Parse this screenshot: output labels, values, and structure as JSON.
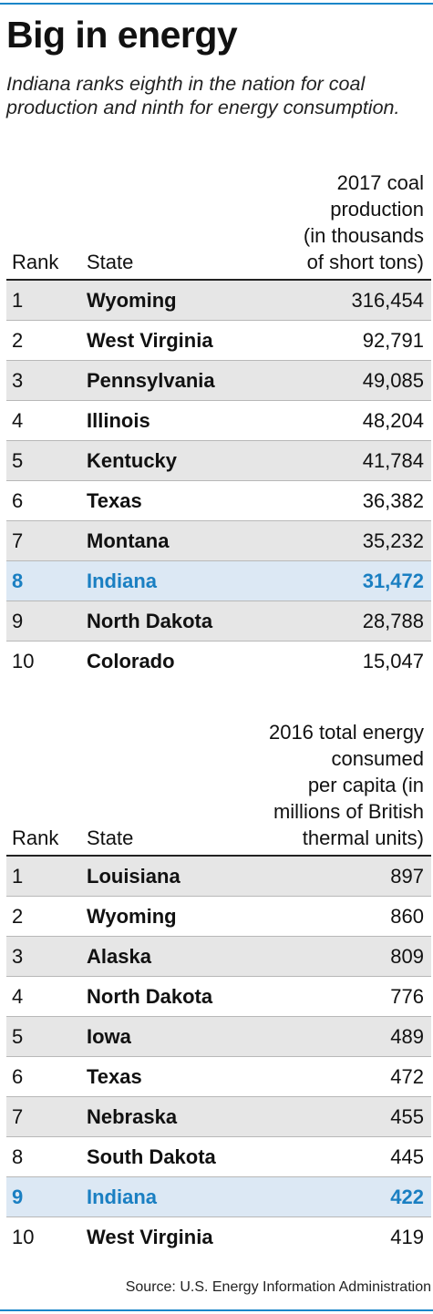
{
  "header": {
    "title": "Big in energy",
    "subtitle": "Indiana ranks eighth in the nation for coal production and ninth for energy consumption."
  },
  "colors": {
    "accent": "#1a7fc2",
    "highlight_row": "#dce8f4",
    "shaded_row": "#e6e6e6",
    "rule": "#1a86c8"
  },
  "chart_data": [
    {
      "type": "table",
      "columns": [
        "Rank",
        "State",
        "2017 coal production (in thousands of short tons)"
      ],
      "value_header_lines": [
        "2017 coal",
        "production",
        "(in thousands",
        "of short tons)"
      ],
      "highlight_rank": 8,
      "rows": [
        {
          "rank": "1",
          "state": "Wyoming",
          "value": "316,454"
        },
        {
          "rank": "2",
          "state": "West Virginia",
          "value": "92,791"
        },
        {
          "rank": "3",
          "state": "Pennsylvania",
          "value": "49,085"
        },
        {
          "rank": "4",
          "state": "Illinois",
          "value": "48,204"
        },
        {
          "rank": "5",
          "state": "Kentucky",
          "value": "41,784"
        },
        {
          "rank": "6",
          "state": "Texas",
          "value": "36,382"
        },
        {
          "rank": "7",
          "state": "Montana",
          "value": "35,232"
        },
        {
          "rank": "8",
          "state": "Indiana",
          "value": "31,472"
        },
        {
          "rank": "9",
          "state": "North Dakota",
          "value": "28,788"
        },
        {
          "rank": "10",
          "state": "Colorado",
          "value": "15,047"
        }
      ]
    },
    {
      "type": "table",
      "columns": [
        "Rank",
        "State",
        "2016 total energy consumed per capita (in millions of British thermal units)"
      ],
      "value_header_lines": [
        "2016 total energy",
        "consumed",
        "per capita (in",
        "millions of British",
        "thermal units)"
      ],
      "highlight_rank": 9,
      "rows": [
        {
          "rank": "1",
          "state": "Louisiana",
          "value": "897"
        },
        {
          "rank": "2",
          "state": "Wyoming",
          "value": "860"
        },
        {
          "rank": "3",
          "state": "Alaska",
          "value": "809"
        },
        {
          "rank": "4",
          "state": "North Dakota",
          "value": "776"
        },
        {
          "rank": "5",
          "state": "Iowa",
          "value": "489"
        },
        {
          "rank": "6",
          "state": "Texas",
          "value": "472"
        },
        {
          "rank": "7",
          "state": "Nebraska",
          "value": "455"
        },
        {
          "rank": "8",
          "state": "South Dakota",
          "value": "445"
        },
        {
          "rank": "9",
          "state": "Indiana",
          "value": "422"
        },
        {
          "rank": "10",
          "state": "West Virginia",
          "value": "419"
        }
      ]
    }
  ],
  "source": "Source: U.S. Energy Information Administration"
}
